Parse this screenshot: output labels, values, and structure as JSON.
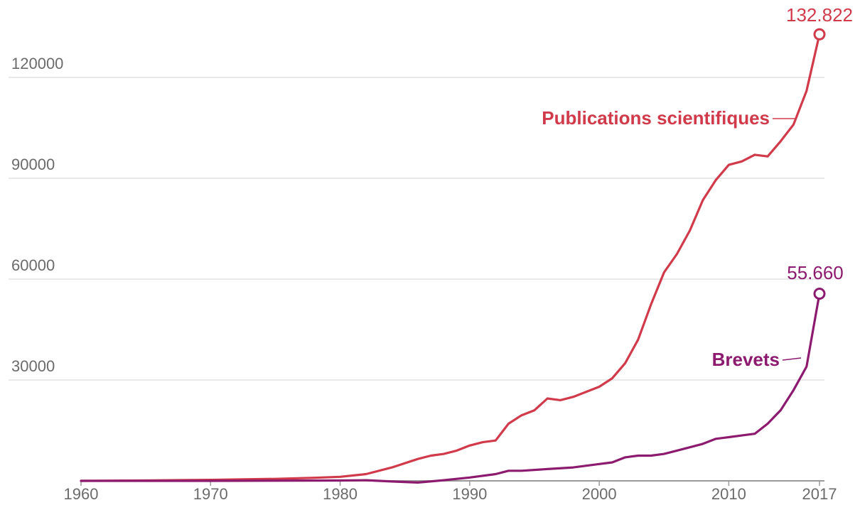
{
  "chart_data": {
    "type": "line",
    "title": "",
    "xlabel": "",
    "ylabel": "",
    "xlim": [
      1960,
      2017
    ],
    "ylim": [
      0,
      132822
    ],
    "grid": true,
    "y_ticks": [
      {
        "value": 30000,
        "label": "30000"
      },
      {
        "value": 60000,
        "label": "60000"
      },
      {
        "value": 90000,
        "label": "90000"
      },
      {
        "value": 120000,
        "label": "120000"
      }
    ],
    "x_ticks": [
      {
        "value": 1960,
        "label": "1960"
      },
      {
        "value": 1970,
        "label": "1970"
      },
      {
        "value": 1980,
        "label": "1980"
      },
      {
        "value": 1990,
        "label": "1990"
      },
      {
        "value": 2000,
        "label": "2000"
      },
      {
        "value": 2010,
        "label": "2010"
      },
      {
        "value": 2017,
        "label": "2017"
      }
    ],
    "series": [
      {
        "name": "Publications scientifiques",
        "color": "#d03a4a",
        "end_label": "132.822",
        "x": [
          1960,
          1965,
          1970,
          1975,
          1978,
          1980,
          1982,
          1984,
          1986,
          1987,
          1988,
          1989,
          1990,
          1991,
          1992,
          1993,
          1994,
          1995,
          1996,
          1997,
          1998,
          1999,
          2000,
          2001,
          2002,
          2003,
          2004,
          2005,
          2006,
          2007,
          2008,
          2009,
          2010,
          2011,
          2012,
          2013,
          2014,
          2015,
          2016,
          2017
        ],
        "y": [
          0,
          100,
          300,
          600,
          900,
          1200,
          2000,
          4000,
          6500,
          7500,
          8000,
          9000,
          10500,
          11500,
          12000,
          17000,
          19500,
          21000,
          24500,
          24000,
          25000,
          26500,
          28000,
          30500,
          35000,
          42000,
          52500,
          62000,
          67500,
          74500,
          83500,
          89500,
          94000,
          95000,
          97000,
          96500,
          101000,
          106000,
          116000,
          132822
        ]
      },
      {
        "name": "Brevets",
        "color": "#8c1a6e",
        "end_label": "55.660",
        "x": [
          1960,
          1970,
          1980,
          1982,
          1984,
          1986,
          1988,
          1990,
          1992,
          1993,
          1994,
          1996,
          1998,
          2000,
          2001,
          2002,
          2003,
          2004,
          2005,
          2006,
          2007,
          2008,
          2009,
          2010,
          2011,
          2012,
          2013,
          2014,
          2015,
          2016,
          2017
        ],
        "y": [
          0,
          0,
          100,
          200,
          -200,
          -500,
          200,
          1000,
          2000,
          3000,
          3000,
          3500,
          4000,
          5000,
          5500,
          7000,
          7500,
          7500,
          8000,
          9000,
          10000,
          11000,
          12500,
          13000,
          13500,
          14000,
          17000,
          21000,
          27000,
          34000,
          55660
        ]
      }
    ]
  }
}
